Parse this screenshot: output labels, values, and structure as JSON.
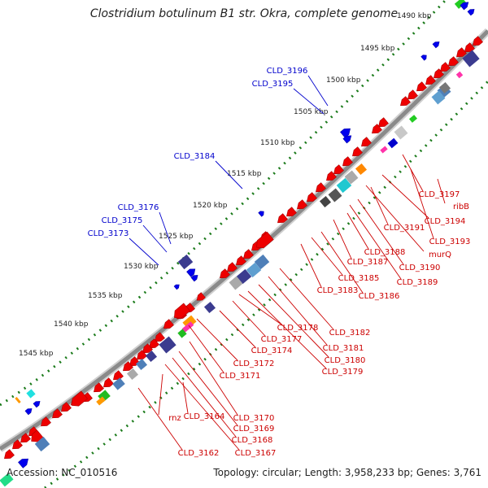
{
  "title": "Clostridium botulinum B1 str. Okra, complete genome",
  "footer": {
    "accession": "Accession: NC_010516",
    "topology": "Topology: circular; Length: 3,958,233 bp; Genes: 3,761"
  },
  "colors": {
    "backbone": "#8a8a8a",
    "forward_label": "#0000cc",
    "reverse_label": "#cc0000",
    "forward_gene": "#0000ee",
    "reverse_gene": "#ee0000",
    "tick_dots": "#1a7a1a"
  },
  "ticks": [
    {
      "label": "1490 kbp",
      "kbp": 1490
    },
    {
      "label": "1495 kbp",
      "kbp": 1495
    },
    {
      "label": "1500 kbp",
      "kbp": 1500
    },
    {
      "label": "1505 kbp",
      "kbp": 1505
    },
    {
      "label": "1510 kbp",
      "kbp": 1510
    },
    {
      "label": "1515 kbp",
      "kbp": 1515
    },
    {
      "label": "1520 kbp",
      "kbp": 1520
    },
    {
      "label": "1525 kbp",
      "kbp": 1525
    },
    {
      "label": "1530 kbp",
      "kbp": 1530
    },
    {
      "label": "1535 kbp",
      "kbp": 1535
    },
    {
      "label": "1540 kbp",
      "kbp": 1540
    },
    {
      "label": "1545 kbp",
      "kbp": 1545
    }
  ],
  "forward_labels": [
    "CLD_3196",
    "CLD_3195",
    "CLD_3184",
    "CLD_3176",
    "CLD_3175",
    "CLD_3173"
  ],
  "reverse_labels": [
    "CLD_3197",
    "ribB",
    "CLD_3194",
    "CLD_3193",
    "murQ",
    "CLD_3191",
    "CLD_3190",
    "CLD_3189",
    "CLD_3188",
    "CLD_3187",
    "CLD_3186",
    "CLD_3185",
    "CLD_3183",
    "CLD_3182",
    "CLD_3181",
    "CLD_3180",
    "CLD_3179",
    "CLD_3178",
    "CLD_3177",
    "CLD_3174",
    "CLD_3172",
    "CLD_3171",
    "CLD_3170",
    "CLD_3169",
    "CLD_3168",
    "CLD_3167",
    "CLD_3164",
    "rnz",
    "CLD_3162"
  ]
}
